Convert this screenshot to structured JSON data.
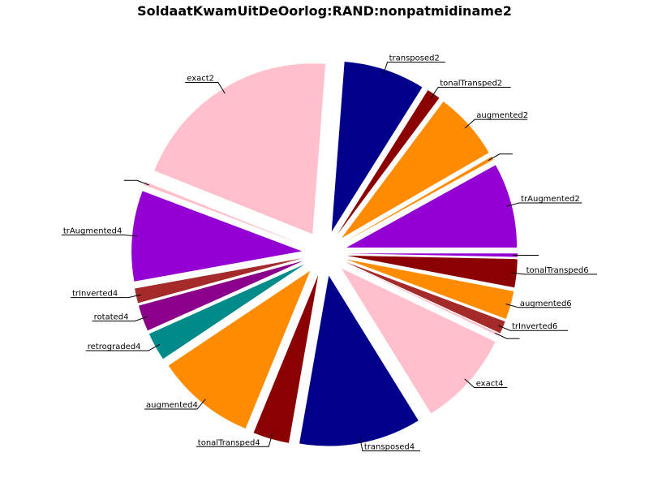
{
  "chart_data": {
    "type": "pie",
    "title": "SoldaatKwamUitDeOorlog:RAND:nonpatmidiname2",
    "start": "east (0°), counterclockwise",
    "exploded": true,
    "slices": [
      {
        "label": "trAugmented2",
        "value": 7.5,
        "color": "#9400d3"
      },
      {
        "label": "",
        "value": 0.3,
        "color": "#ff8c00"
      },
      {
        "label": "augmented2",
        "value": 6.0,
        "color": "#ff8c00"
      },
      {
        "label": "tonalTransped2",
        "value": 1.2,
        "color": "#8b0000"
      },
      {
        "label": "transposed2",
        "value": 7.2,
        "color": "#00008b"
      },
      {
        "label": "exact2",
        "value": 18.8,
        "color": "#ffc0cb"
      },
      {
        "label": "",
        "value": 0.3,
        "color": "#ffc0cb"
      },
      {
        "label": "trAugmented4",
        "value": 8.0,
        "color": "#9400d3"
      },
      {
        "label": "trInverted4",
        "value": 1.3,
        "color": "#a52a2a"
      },
      {
        "label": "rotated4",
        "value": 2.3,
        "color": "#8b008b"
      },
      {
        "label": "retrograded4",
        "value": 2.5,
        "color": "#008b8b"
      },
      {
        "label": "augmented4",
        "value": 8.8,
        "color": "#ff8c00"
      },
      {
        "label": "tonalTransped4",
        "value": 3.2,
        "color": "#8b0000"
      },
      {
        "label": "transposed4",
        "value": 10.8,
        "color": "#00008b"
      },
      {
        "label": "exact4",
        "value": 8.5,
        "color": "#ffc0cb"
      },
      {
        "label": "",
        "value": 0.2,
        "color": "#ffc0cb"
      },
      {
        "label": "trInverted6",
        "value": 1.1,
        "color": "#a52a2a"
      },
      {
        "label": "augmented6",
        "value": 2.5,
        "color": "#ff8c00"
      },
      {
        "label": "tonalTransped6",
        "value": 2.5,
        "color": "#8b0000"
      },
      {
        "label": "",
        "value": 0.3,
        "color": "#9400d3"
      }
    ]
  }
}
